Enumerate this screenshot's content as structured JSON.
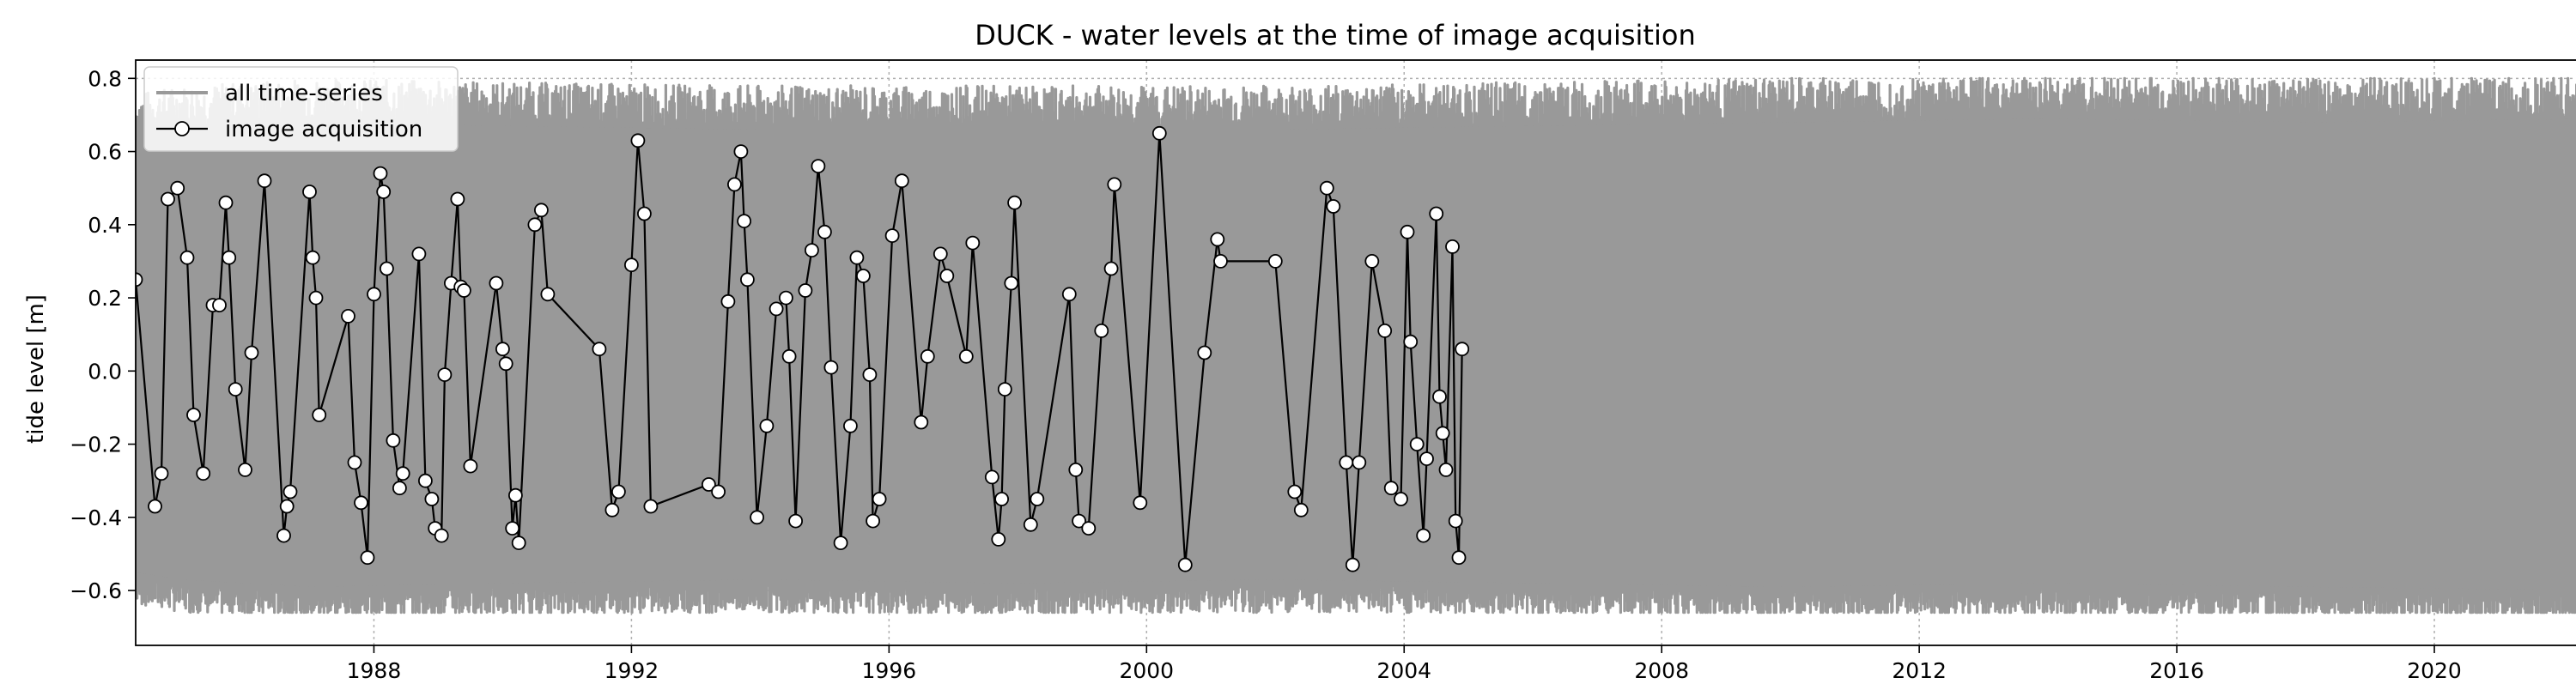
{
  "chart_data": {
    "type": "line",
    "title": "DUCK - water levels at the time of image acquisition",
    "xlabel": "",
    "ylabel": "tide level [m]",
    "xlim": [
      1984.3,
      2022.8
    ],
    "ylim": [
      -0.75,
      0.85
    ],
    "x_ticks": [
      1988,
      1992,
      1996,
      2000,
      2004,
      2008,
      2012,
      2016,
      2020
    ],
    "y_ticks": [
      -0.6,
      -0.4,
      -0.2,
      0.0,
      0.2,
      0.4,
      0.6,
      0.8
    ],
    "y_tick_labels": [
      "−0.6",
      "−0.4",
      "−0.2",
      "0.0",
      "0.2",
      "0.4",
      "0.6",
      "0.8"
    ],
    "grid": true,
    "legend_position": "top-left",
    "colors": {
      "all_series": "#999999",
      "acquisition_line": "#000000",
      "marker_face": "#ffffff"
    },
    "series": [
      {
        "name": "all time-series",
        "style": "continuous band",
        "envelope_upper": [
          [
            1984.3,
            0.7
          ],
          [
            1985,
            0.72
          ],
          [
            1987,
            0.74
          ],
          [
            1990,
            0.73
          ],
          [
            1994,
            0.72
          ],
          [
            1998,
            0.72
          ],
          [
            2002,
            0.72
          ],
          [
            2006,
            0.73
          ],
          [
            2010,
            0.74
          ],
          [
            2014,
            0.75
          ],
          [
            2018,
            0.74
          ],
          [
            2022.8,
            0.75
          ]
        ],
        "envelope_lower": [
          [
            1984.3,
            -0.6
          ],
          [
            1985,
            -0.62
          ],
          [
            1987,
            -0.64
          ],
          [
            1990,
            -0.63
          ],
          [
            1994,
            -0.62
          ],
          [
            1998,
            -0.63
          ],
          [
            2002,
            -0.62
          ],
          [
            2006,
            -0.63
          ],
          [
            2010,
            -0.64
          ],
          [
            2014,
            -0.63
          ],
          [
            2018,
            -0.64
          ],
          [
            2022.8,
            -0.65
          ]
        ],
        "peak_max": 0.8,
        "trough_min": -0.66
      },
      {
        "name": "image acquisition",
        "style": "line with circle markers",
        "points": [
          [
            1984.3,
            0.25
          ],
          [
            1984.6,
            -0.37
          ],
          [
            1984.7,
            -0.28
          ],
          [
            1984.8,
            0.47
          ],
          [
            1984.95,
            0.5
          ],
          [
            1985.1,
            0.31
          ],
          [
            1985.2,
            -0.12
          ],
          [
            1985.35,
            -0.28
          ],
          [
            1985.5,
            0.18
          ],
          [
            1985.6,
            0.18
          ],
          [
            1985.7,
            0.46
          ],
          [
            1985.75,
            0.31
          ],
          [
            1985.85,
            -0.05
          ],
          [
            1986.0,
            -0.27
          ],
          [
            1986.1,
            0.05
          ],
          [
            1986.3,
            0.52
          ],
          [
            1986.6,
            -0.45
          ],
          [
            1986.65,
            -0.37
          ],
          [
            1986.7,
            -0.33
          ],
          [
            1987.0,
            0.49
          ],
          [
            1987.05,
            0.31
          ],
          [
            1987.1,
            0.2
          ],
          [
            1987.15,
            -0.12
          ],
          [
            1987.6,
            0.15
          ],
          [
            1987.7,
            -0.25
          ],
          [
            1987.8,
            -0.36
          ],
          [
            1987.9,
            -0.51
          ],
          [
            1988.0,
            0.21
          ],
          [
            1988.1,
            0.54
          ],
          [
            1988.15,
            0.49
          ],
          [
            1988.2,
            0.28
          ],
          [
            1988.3,
            -0.19
          ],
          [
            1988.4,
            -0.32
          ],
          [
            1988.45,
            -0.28
          ],
          [
            1988.7,
            0.32
          ],
          [
            1988.8,
            -0.3
          ],
          [
            1988.9,
            -0.35
          ],
          [
            1988.95,
            -0.43
          ],
          [
            1989.05,
            -0.45
          ],
          [
            1989.1,
            -0.01
          ],
          [
            1989.2,
            0.24
          ],
          [
            1989.3,
            0.47
          ],
          [
            1989.35,
            0.23
          ],
          [
            1989.4,
            0.22
          ],
          [
            1989.5,
            -0.26
          ],
          [
            1989.9,
            0.24
          ],
          [
            1990.0,
            0.06
          ],
          [
            1990.05,
            0.02
          ],
          [
            1990.15,
            -0.43
          ],
          [
            1990.2,
            -0.34
          ],
          [
            1990.25,
            -0.47
          ],
          [
            1990.5,
            0.4
          ],
          [
            1990.6,
            0.44
          ],
          [
            1990.7,
            0.21
          ],
          [
            1991.5,
            0.06
          ],
          [
            1991.7,
            -0.38
          ],
          [
            1991.8,
            -0.33
          ],
          [
            1992.0,
            0.29
          ],
          [
            1992.1,
            0.63
          ],
          [
            1992.2,
            0.43
          ],
          [
            1992.3,
            -0.37
          ],
          [
            1993.2,
            -0.31
          ],
          [
            1993.35,
            -0.33
          ],
          [
            1993.5,
            0.19
          ],
          [
            1993.6,
            0.51
          ],
          [
            1993.7,
            0.6
          ],
          [
            1993.75,
            0.41
          ],
          [
            1993.8,
            0.25
          ],
          [
            1993.95,
            -0.4
          ],
          [
            1994.1,
            -0.15
          ],
          [
            1994.25,
            0.17
          ],
          [
            1994.4,
            0.2
          ],
          [
            1994.45,
            0.04
          ],
          [
            1994.55,
            -0.41
          ],
          [
            1994.7,
            0.22
          ],
          [
            1994.8,
            0.33
          ],
          [
            1994.9,
            0.56
          ],
          [
            1995.0,
            0.38
          ],
          [
            1995.1,
            0.01
          ],
          [
            1995.25,
            -0.47
          ],
          [
            1995.4,
            -0.15
          ],
          [
            1995.5,
            0.31
          ],
          [
            1995.6,
            0.26
          ],
          [
            1995.7,
            -0.01
          ],
          [
            1995.75,
            -0.41
          ],
          [
            1995.85,
            -0.35
          ],
          [
            1996.05,
            0.37
          ],
          [
            1996.2,
            0.52
          ],
          [
            1996.5,
            -0.14
          ],
          [
            1996.6,
            0.04
          ],
          [
            1996.8,
            0.32
          ],
          [
            1996.9,
            0.26
          ],
          [
            1997.2,
            0.04
          ],
          [
            1997.3,
            0.35
          ],
          [
            1997.6,
            -0.29
          ],
          [
            1997.7,
            -0.46
          ],
          [
            1997.75,
            -0.35
          ],
          [
            1997.8,
            -0.05
          ],
          [
            1997.9,
            0.24
          ],
          [
            1997.95,
            0.46
          ],
          [
            1998.2,
            -0.42
          ],
          [
            1998.3,
            -0.35
          ],
          [
            1998.8,
            0.21
          ],
          [
            1998.9,
            -0.27
          ],
          [
            1998.95,
            -0.41
          ],
          [
            1999.1,
            -0.43
          ],
          [
            1999.3,
            0.11
          ],
          [
            1999.45,
            0.28
          ],
          [
            1999.5,
            0.51
          ],
          [
            1999.9,
            -0.36
          ],
          [
            2000.2,
            0.65
          ],
          [
            2000.6,
            -0.53
          ],
          [
            2000.9,
            0.05
          ],
          [
            2001.1,
            0.36
          ],
          [
            2001.15,
            0.3
          ],
          [
            2002.0,
            0.3
          ],
          [
            2002.3,
            -0.33
          ],
          [
            2002.4,
            -0.38
          ],
          [
            2002.8,
            0.5
          ],
          [
            2002.9,
            0.45
          ],
          [
            2003.1,
            -0.25
          ],
          [
            2003.2,
            -0.53
          ],
          [
            2003.3,
            -0.25
          ],
          [
            2003.5,
            0.3
          ],
          [
            2003.7,
            0.11
          ],
          [
            2003.8,
            -0.32
          ],
          [
            2003.95,
            -0.35
          ],
          [
            2004.05,
            0.38
          ],
          [
            2004.1,
            0.08
          ],
          [
            2004.2,
            -0.2
          ],
          [
            2004.3,
            -0.45
          ],
          [
            2004.35,
            -0.24
          ],
          [
            2004.5,
            0.43
          ],
          [
            2004.55,
            -0.07
          ],
          [
            2004.6,
            -0.17
          ],
          [
            2004.65,
            -0.27
          ],
          [
            2004.75,
            0.34
          ],
          [
            2004.8,
            -0.41
          ],
          [
            2004.85,
            -0.51
          ],
          [
            2004.9,
            0.06
          ]
        ]
      }
    ],
    "legend_entries": [
      "all time-series",
      "image acquisition"
    ]
  }
}
